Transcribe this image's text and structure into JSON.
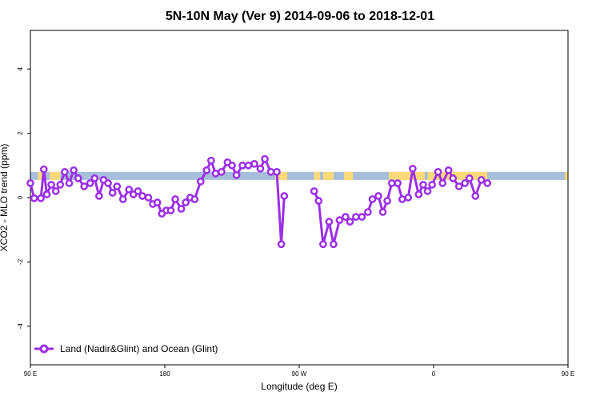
{
  "chart_data": {
    "type": "line",
    "title": "5N-10N May (Ver 9)   2014-09-06 to 2018-12-01",
    "xlabel": "Longitude (deg E)",
    "ylabel": "XCO2 - MLO trend (ppm)",
    "xlim": [
      90,
      450
    ],
    "ylim": [
      -5.2,
      5.2
    ],
    "x_ticks": [
      {
        "value": 90,
        "label": "90 E"
      },
      {
        "value": 180,
        "label": "180"
      },
      {
        "value": 270,
        "label": "90 W"
      },
      {
        "value": 360,
        "label": "0"
      },
      {
        "value": 450,
        "label": "90 E"
      }
    ],
    "y_ticks": [
      {
        "value": -4,
        "label": "-4"
      },
      {
        "value": -2,
        "label": "-2"
      },
      {
        "value": 0,
        "label": "0"
      },
      {
        "value": 2,
        "label": "2"
      },
      {
        "value": 4,
        "label": "4"
      }
    ],
    "legend_position": "bottom-left",
    "grid": false,
    "land_ocean_band": {
      "y_range": [
        0.55,
        0.8
      ],
      "ocean_color": "#a7bfdc",
      "land_color": "#fdd979",
      "land_segments": [
        [
          95,
          98
        ],
        [
          103,
          110
        ],
        [
          254,
          262
        ],
        [
          280,
          284
        ],
        [
          286,
          293
        ],
        [
          300,
          306
        ],
        [
          330,
          354
        ],
        [
          356,
          396
        ],
        [
          448,
          450
        ]
      ]
    },
    "series": [
      {
        "name": "Land (Nadir&Glint) and Ocean (Glint)",
        "color": "#9b30e8",
        "segments": [
          [
            [
              90,
              0.45
            ],
            [
              92.5,
              -0.02
            ],
            [
              97,
              -0.02
            ],
            [
              99,
              0.88
            ],
            [
              101,
              0.1
            ],
            [
              104,
              0.4
            ],
            [
              107,
              0.2
            ],
            [
              110,
              0.4
            ],
            [
              113,
              0.8
            ],
            [
              116,
              0.45
            ],
            [
              119,
              0.85
            ],
            [
              122,
              0.6
            ],
            [
              126,
              0.35
            ],
            [
              130,
              0.45
            ],
            [
              133,
              0.6
            ],
            [
              136,
              0.05
            ],
            [
              139,
              0.55
            ],
            [
              142,
              0.45
            ],
            [
              145,
              0.15
            ],
            [
              148,
              0.35
            ],
            [
              152,
              -0.05
            ],
            [
              156,
              0.25
            ],
            [
              159,
              0.1
            ],
            [
              162,
              0.2
            ],
            [
              165,
              0.05
            ],
            [
              169,
              0.0
            ],
            [
              172,
              -0.2
            ],
            [
              175,
              -0.15
            ],
            [
              178,
              -0.5
            ],
            [
              181,
              -0.4
            ],
            [
              184,
              -0.4
            ],
            [
              187,
              -0.05
            ],
            [
              191,
              -0.35
            ],
            [
              194,
              -0.15
            ],
            [
              197,
              0.0
            ],
            [
              200,
              -0.05
            ],
            [
              204,
              0.5
            ],
            [
              208,
              0.85
            ],
            [
              211,
              1.15
            ],
            [
              214,
              0.75
            ],
            [
              218,
              0.8
            ],
            [
              222,
              1.1
            ],
            [
              225,
              1.0
            ],
            [
              228,
              0.7
            ],
            [
              232,
              1.0
            ],
            [
              236,
              1.0
            ],
            [
              240,
              1.05
            ],
            [
              244,
              0.9
            ],
            [
              247,
              1.2
            ],
            [
              251,
              0.8
            ],
            [
              255,
              0.8
            ],
            [
              258,
              -1.45
            ],
            [
              260,
              0.05
            ]
          ],
          [
            [
              280,
              0.2
            ],
            [
              283,
              -0.1
            ],
            [
              286,
              -1.45
            ],
            [
              290,
              -0.75
            ],
            [
              293,
              -1.45
            ],
            [
              297,
              -0.7
            ],
            [
              301,
              -0.6
            ],
            [
              304,
              -0.75
            ],
            [
              308,
              -0.6
            ],
            [
              312,
              -0.6
            ],
            [
              316,
              -0.45
            ],
            [
              319,
              -0.05
            ],
            [
              323,
              0.05
            ],
            [
              326,
              -0.45
            ],
            [
              329,
              -0.1
            ],
            [
              332,
              0.45
            ],
            [
              336,
              0.45
            ],
            [
              339,
              -0.05
            ],
            [
              343,
              0.0
            ],
            [
              346,
              0.9
            ],
            [
              350,
              0.1
            ],
            [
              353,
              0.4
            ],
            [
              356,
              0.2
            ],
            [
              359,
              0.4
            ],
            [
              363,
              0.8
            ],
            [
              366,
              0.45
            ],
            [
              370,
              0.85
            ],
            [
              373,
              0.6
            ],
            [
              377,
              0.35
            ],
            [
              381,
              0.45
            ],
            [
              384,
              0.6
            ],
            [
              388,
              0.05
            ],
            [
              392,
              0.55
            ],
            [
              396,
              0.45
            ]
          ]
        ]
      }
    ]
  }
}
